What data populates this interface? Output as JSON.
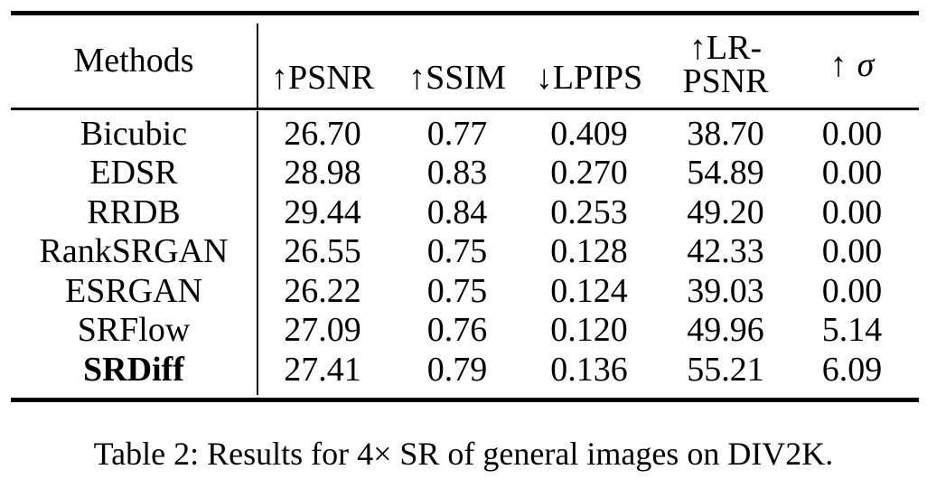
{
  "colors": {
    "background": "#ffffff",
    "text": "#000000",
    "rule": "#000000"
  },
  "table": {
    "header": {
      "methods": "Methods",
      "psnr": "↑PSNR",
      "ssim": "↑SSIM",
      "lpips": "↓LPIPS",
      "lr_psnr_line1": "↑LR-",
      "lr_psnr_line2": "PSNR",
      "sigma_arrow": "↑",
      "sigma_symbol": "σ"
    },
    "rows": [
      {
        "method": "Bicubic",
        "psnr": "26.70",
        "ssim": "0.77",
        "lpips": "0.409",
        "lr_psnr": "38.70",
        "sigma": "0.00",
        "bold": false
      },
      {
        "method": "EDSR",
        "psnr": "28.98",
        "ssim": "0.83",
        "lpips": "0.270",
        "lr_psnr": "54.89",
        "sigma": "0.00",
        "bold": false
      },
      {
        "method": "RRDB",
        "psnr": "29.44",
        "ssim": "0.84",
        "lpips": "0.253",
        "lr_psnr": "49.20",
        "sigma": "0.00",
        "bold": false
      },
      {
        "method": "RankSRGAN",
        "psnr": "26.55",
        "ssim": "0.75",
        "lpips": "0.128",
        "lr_psnr": "42.33",
        "sigma": "0.00",
        "bold": false
      },
      {
        "method": "ESRGAN",
        "psnr": "26.22",
        "ssim": "0.75",
        "lpips": "0.124",
        "lr_psnr": "39.03",
        "sigma": "0.00",
        "bold": false
      },
      {
        "method": "SRFlow",
        "psnr": "27.09",
        "ssim": "0.76",
        "lpips": "0.120",
        "lr_psnr": "49.96",
        "sigma": "5.14",
        "bold": false
      },
      {
        "method": "SRDiff",
        "psnr": "27.41",
        "ssim": "0.79",
        "lpips": "0.136",
        "lr_psnr": "55.21",
        "sigma": "6.09",
        "bold": true
      }
    ]
  },
  "caption": "Table 2: Results for 4× SR of general images on DIV2K."
}
